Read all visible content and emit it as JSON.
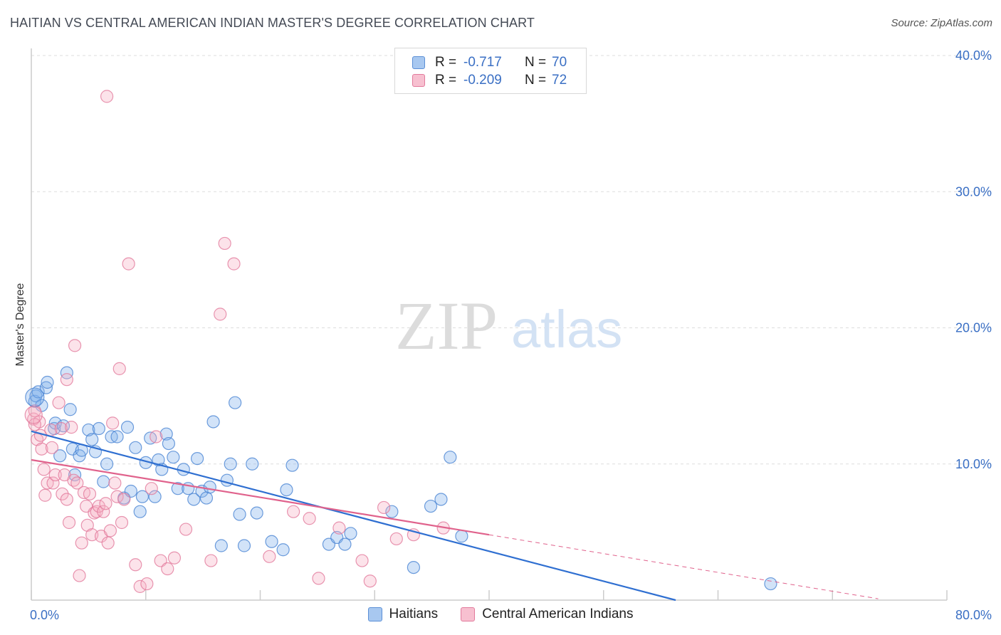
{
  "title": "HAITIAN VS CENTRAL AMERICAN INDIAN MASTER'S DEGREE CORRELATION CHART",
  "source": "Source: ZipAtlas.com",
  "watermark": {
    "zip": "ZIP",
    "atlas": "atlas"
  },
  "legend": {
    "rows": [
      {
        "r_label": "R =",
        "r_value": "-0.717",
        "n_label": "N =",
        "n_value": "70",
        "color": "#a8c8f0",
        "border": "#5b8fd6"
      },
      {
        "r_label": "R =",
        "r_value": "-0.209",
        "n_label": "N =",
        "n_value": "72",
        "color": "#f7c0d0",
        "border": "#e27a9c"
      }
    ]
  },
  "bottom_legend": [
    {
      "label": "Haitians",
      "color": "#a8c8f0",
      "border": "#5b8fd6"
    },
    {
      "label": "Central American Indians",
      "color": "#f7c0d0",
      "border": "#e27a9c"
    }
  ],
  "chart_data": {
    "type": "scatter",
    "xlabel": "",
    "ylabel": "Master's Degree",
    "xlim": [
      0,
      80
    ],
    "ylim": [
      0,
      40
    ],
    "x_tick_labels": [
      {
        "value": 0,
        "label": "0.0%"
      },
      {
        "value": 80,
        "label": "80.0%"
      }
    ],
    "y_tick_labels": [
      {
        "value": 10,
        "label": "10.0%"
      },
      {
        "value": 20,
        "label": "20.0%"
      },
      {
        "value": 30,
        "label": "30.0%"
      },
      {
        "value": 40,
        "label": "40.0%"
      }
    ],
    "series": [
      {
        "name": "Haitians",
        "color": "#7fb0ea",
        "stroke": "#4a84d3",
        "trend": {
          "x": [
            0,
            56.3
          ],
          "y": [
            12.4,
            0.0
          ],
          "color": "#2f6fd1"
        },
        "points": [
          [
            0.3,
            14.6
          ],
          [
            0.4,
            15.0
          ],
          [
            0.6,
            15.3
          ],
          [
            0.9,
            14.3
          ],
          [
            1.3,
            15.6
          ],
          [
            1.4,
            16.0
          ],
          [
            3.1,
            16.7
          ],
          [
            3.4,
            14.0
          ],
          [
            2.0,
            12.6
          ],
          [
            2.1,
            13.0
          ],
          [
            2.8,
            12.8
          ],
          [
            2.5,
            10.6
          ],
          [
            3.6,
            11.1
          ],
          [
            3.8,
            9.2
          ],
          [
            4.2,
            10.6
          ],
          [
            4.4,
            11.0
          ],
          [
            5.0,
            12.5
          ],
          [
            5.3,
            11.8
          ],
          [
            5.6,
            10.9
          ],
          [
            5.9,
            12.6
          ],
          [
            6.3,
            8.7
          ],
          [
            6.6,
            10.0
          ],
          [
            7.0,
            12.0
          ],
          [
            7.5,
            12.0
          ],
          [
            8.1,
            7.5
          ],
          [
            8.4,
            12.7
          ],
          [
            8.7,
            8.0
          ],
          [
            9.1,
            11.2
          ],
          [
            9.5,
            6.5
          ],
          [
            9.7,
            7.6
          ],
          [
            10.0,
            10.1
          ],
          [
            10.4,
            11.9
          ],
          [
            10.8,
            7.6
          ],
          [
            11.1,
            10.3
          ],
          [
            11.4,
            9.6
          ],
          [
            11.8,
            12.2
          ],
          [
            12.0,
            11.5
          ],
          [
            12.4,
            10.5
          ],
          [
            12.8,
            8.2
          ],
          [
            13.3,
            9.6
          ],
          [
            13.7,
            8.2
          ],
          [
            14.2,
            7.4
          ],
          [
            14.5,
            10.4
          ],
          [
            14.9,
            8.0
          ],
          [
            15.3,
            7.5
          ],
          [
            15.6,
            8.3
          ],
          [
            15.9,
            13.1
          ],
          [
            16.6,
            4.0
          ],
          [
            17.1,
            8.8
          ],
          [
            17.4,
            10.0
          ],
          [
            17.8,
            14.5
          ],
          [
            18.2,
            6.3
          ],
          [
            18.6,
            4.0
          ],
          [
            19.3,
            10.0
          ],
          [
            19.7,
            6.4
          ],
          [
            21.0,
            4.3
          ],
          [
            22.0,
            3.7
          ],
          [
            22.3,
            8.1
          ],
          [
            22.8,
            9.9
          ],
          [
            26.0,
            4.1
          ],
          [
            26.7,
            4.6
          ],
          [
            27.4,
            4.1
          ],
          [
            27.9,
            4.9
          ],
          [
            31.5,
            6.5
          ],
          [
            33.4,
            2.4
          ],
          [
            34.9,
            6.9
          ],
          [
            35.8,
            7.4
          ],
          [
            36.6,
            10.5
          ],
          [
            37.6,
            4.7
          ],
          [
            64.6,
            1.2
          ]
        ]
      },
      {
        "name": "Central American Indians",
        "color": "#f5aec3",
        "stroke": "#e27a9c",
        "trend": {
          "x": [
            0,
            40.0
          ],
          "y": [
            10.3,
            4.8
          ],
          "color": "#e0628c",
          "dash_x": [
            40.0,
            74.0
          ],
          "dash_y": [
            4.8,
            0.1
          ]
        },
        "points": [
          [
            0.2,
            13.3
          ],
          [
            0.3,
            13.9
          ],
          [
            0.5,
            11.8
          ],
          [
            0.8,
            12.1
          ],
          [
            0.9,
            11.1
          ],
          [
            1.1,
            9.6
          ],
          [
            1.2,
            7.7
          ],
          [
            1.4,
            8.6
          ],
          [
            1.7,
            12.5
          ],
          [
            1.8,
            11.2
          ],
          [
            1.9,
            8.6
          ],
          [
            2.1,
            9.2
          ],
          [
            2.4,
            14.5
          ],
          [
            2.6,
            12.6
          ],
          [
            2.7,
            7.8
          ],
          [
            2.9,
            9.2
          ],
          [
            3.1,
            7.4
          ],
          [
            3.3,
            5.7
          ],
          [
            3.5,
            12.7
          ],
          [
            3.7,
            8.8
          ],
          [
            4.0,
            8.6
          ],
          [
            4.2,
            1.8
          ],
          [
            4.4,
            4.2
          ],
          [
            4.6,
            7.9
          ],
          [
            4.8,
            6.9
          ],
          [
            4.9,
            5.5
          ],
          [
            5.1,
            7.8
          ],
          [
            5.3,
            4.8
          ],
          [
            5.5,
            6.4
          ],
          [
            5.7,
            6.5
          ],
          [
            5.9,
            6.9
          ],
          [
            6.1,
            4.7
          ],
          [
            6.3,
            6.5
          ],
          [
            6.5,
            7.1
          ],
          [
            6.7,
            4.2
          ],
          [
            6.9,
            5.1
          ],
          [
            7.1,
            13.0
          ],
          [
            7.3,
            8.6
          ],
          [
            7.5,
            7.6
          ],
          [
            7.7,
            17.0
          ],
          [
            7.9,
            5.7
          ],
          [
            8.1,
            7.4
          ],
          [
            8.5,
            24.7
          ],
          [
            9.1,
            2.6
          ],
          [
            9.5,
            1.0
          ],
          [
            10.1,
            1.2
          ],
          [
            10.5,
            8.2
          ],
          [
            10.9,
            12.0
          ],
          [
            11.3,
            2.9
          ],
          [
            11.9,
            2.3
          ],
          [
            12.5,
            3.1
          ],
          [
            13.5,
            5.2
          ],
          [
            15.7,
            2.9
          ],
          [
            16.5,
            21.0
          ],
          [
            16.9,
            26.2
          ],
          [
            17.7,
            24.7
          ],
          [
            20.8,
            3.2
          ],
          [
            22.9,
            6.5
          ],
          [
            24.3,
            6.0
          ],
          [
            25.1,
            1.6
          ],
          [
            26.9,
            5.3
          ],
          [
            28.9,
            2.9
          ],
          [
            29.6,
            1.4
          ],
          [
            30.8,
            6.8
          ],
          [
            31.9,
            4.5
          ],
          [
            33.4,
            4.8
          ],
          [
            36.0,
            5.3
          ],
          [
            6.6,
            37.0
          ],
          [
            3.8,
            18.7
          ],
          [
            3.1,
            16.2
          ],
          [
            0.7,
            13.1
          ],
          [
            0.3,
            12.9
          ]
        ]
      }
    ]
  }
}
